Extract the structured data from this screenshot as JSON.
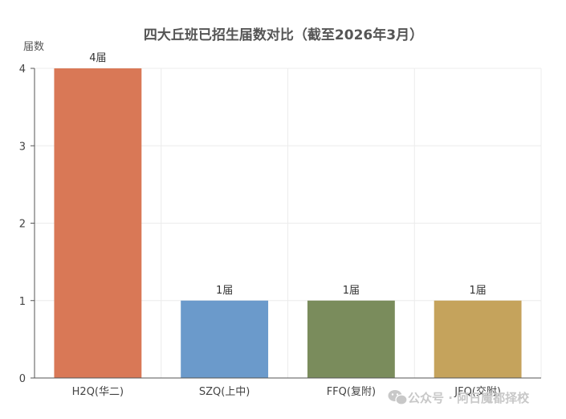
{
  "chart_data": {
    "type": "bar",
    "title": "四大丘班已招生届数对比（截至2026年3月）",
    "ylabel": "届数",
    "xlabel": "",
    "categories": [
      "H2Q(华二)",
      "SZQ(上中)",
      "FFQ(复附)",
      "JFQ(交附)"
    ],
    "values": [
      4,
      1,
      1,
      1
    ],
    "data_labels": [
      "4届",
      "1届",
      "1届",
      "1届"
    ],
    "ylim": [
      0,
      4
    ],
    "yticks": [
      0,
      1,
      2,
      3,
      4
    ],
    "grid": true,
    "colors": [
      "#d97856",
      "#6b9acb",
      "#7a8c5c",
      "#c5a35c"
    ]
  },
  "watermark": {
    "text": "公众号 · 阿日魔都择校",
    "icon": "wechat-icon"
  }
}
